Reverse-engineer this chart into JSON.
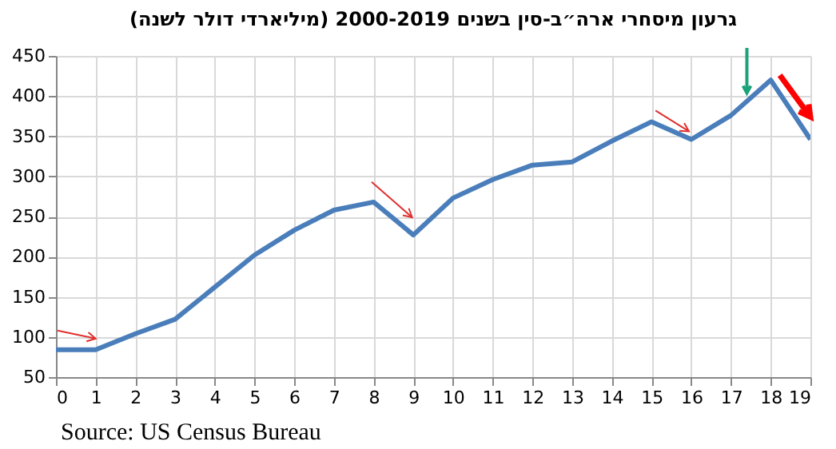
{
  "chart_data": {
    "type": "line",
    "title": "גרעון מיסחרי ארה״ב-סין בשנים 2000-2019 (מיליארדי דולר לשנה)",
    "x": [
      0,
      1,
      2,
      3,
      4,
      5,
      6,
      7,
      8,
      9,
      10,
      11,
      12,
      13,
      14,
      15,
      16,
      17,
      18,
      19
    ],
    "series": [
      {
        "color": "#4a7ebb",
        "values": [
          84,
          84,
          104,
          122,
          162,
          202,
          233,
          258,
          268,
          227,
          273,
          296,
          314,
          318,
          344,
          368,
          346,
          376,
          420,
          346
        ]
      }
    ],
    "xlim": [
      0,
      19
    ],
    "xticks": [
      0,
      1,
      2,
      3,
      4,
      5,
      6,
      7,
      8,
      9,
      10,
      11,
      12,
      13,
      14,
      15,
      16,
      17,
      18,
      19
    ],
    "ylim": [
      50,
      450
    ],
    "yticks": [
      50,
      100,
      150,
      200,
      250,
      300,
      350,
      400,
      450
    ],
    "grid": true,
    "legend": false,
    "marker": "none",
    "line_style": "solid",
    "annotations": [
      "Source: US Census Bureau"
    ]
  }
}
